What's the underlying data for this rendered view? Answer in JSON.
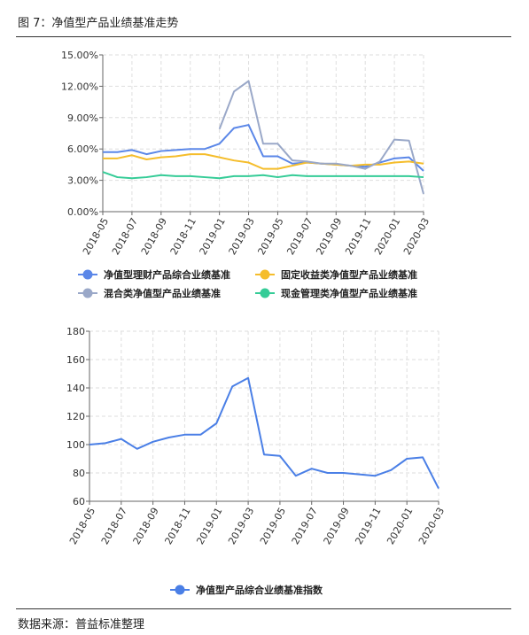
{
  "figure_title": "图 7：净值型产品业绩基准走势",
  "source": "数据来源：普益标准整理",
  "colors": {
    "blue": "#5b87e8",
    "gold": "#f5bd2b",
    "gray": "#9aa8c8",
    "green": "#35cc97",
    "index": "#4a7fe6"
  },
  "chart_data": [
    {
      "type": "line",
      "categories": [
        "2018-05",
        "2018-06",
        "2018-07",
        "2018-08",
        "2018-09",
        "2018-10",
        "2018-11",
        "2018-12",
        "2019-01",
        "2019-02",
        "2019-03",
        "2019-04",
        "2019-05",
        "2019-06",
        "2019-07",
        "2019-08",
        "2019-09",
        "2019-10",
        "2019-11",
        "2019-12",
        "2020-01",
        "2020-02",
        "2020-03"
      ],
      "xtick_labels": [
        "2018-05",
        "2018-07",
        "2018-09",
        "2018-11",
        "2019-01",
        "2019-03",
        "2019-05",
        "2019-07",
        "2019-09",
        "2019-11",
        "2020-01",
        "2020-03"
      ],
      "ytick_labels": [
        "0.00%",
        "3.00%",
        "6.00%",
        "9.00%",
        "12.00%",
        "15.00%"
      ],
      "ylim": [
        0,
        15
      ],
      "grid": true,
      "legend_position": "bottom",
      "series": [
        {
          "name": "净值型理财产品综合业绩基准",
          "color": "#5b87e8",
          "values": [
            5.7,
            5.7,
            5.9,
            5.5,
            5.8,
            5.9,
            6.0,
            6.0,
            6.5,
            8.0,
            8.3,
            5.3,
            5.3,
            4.6,
            4.7,
            4.6,
            4.5,
            4.4,
            4.3,
            4.7,
            5.1,
            5.2,
            3.9
          ]
        },
        {
          "name": "固定收益类净值型产品业绩基准",
          "color": "#f5bd2b",
          "values": [
            5.1,
            5.1,
            5.4,
            5.0,
            5.2,
            5.3,
            5.5,
            5.5,
            5.2,
            4.9,
            4.7,
            4.1,
            4.1,
            4.4,
            4.7,
            4.6,
            4.5,
            4.4,
            4.5,
            4.5,
            4.7,
            4.8,
            4.6
          ]
        },
        {
          "name": "混合类净值型产品业绩基准",
          "color": "#9aa8c8",
          "values": [
            null,
            null,
            null,
            null,
            null,
            null,
            null,
            null,
            7.9,
            11.5,
            12.5,
            6.5,
            6.5,
            4.9,
            4.8,
            4.6,
            4.6,
            4.4,
            4.1,
            4.8,
            6.9,
            6.8,
            1.7
          ]
        },
        {
          "name": "现金管理类净值型产品业绩基准",
          "color": "#35cc97",
          "values": [
            3.8,
            3.3,
            3.2,
            3.3,
            3.5,
            3.4,
            3.4,
            3.3,
            3.2,
            3.4,
            3.4,
            3.5,
            3.3,
            3.5,
            3.4,
            3.4,
            3.4,
            3.4,
            3.4,
            3.4,
            3.4,
            3.4,
            3.3
          ]
        }
      ]
    },
    {
      "type": "line",
      "categories": [
        "2018-05",
        "2018-06",
        "2018-07",
        "2018-08",
        "2018-09",
        "2018-10",
        "2018-11",
        "2018-12",
        "2019-01",
        "2019-02",
        "2019-03",
        "2019-04",
        "2019-05",
        "2019-06",
        "2019-07",
        "2019-08",
        "2019-09",
        "2019-10",
        "2019-11",
        "2019-12",
        "2020-01",
        "2020-02",
        "2020-03"
      ],
      "xtick_labels": [
        "2018-05",
        "2018-07",
        "2018-09",
        "2018-11",
        "2019-01",
        "2019-03",
        "2019-05",
        "2019-07",
        "2019-09",
        "2019-11",
        "2020-01",
        "2020-03"
      ],
      "ytick_labels": [
        "60",
        "80",
        "100",
        "120",
        "140",
        "160",
        "180"
      ],
      "ylim": [
        60,
        180
      ],
      "grid": true,
      "legend_position": "bottom",
      "series": [
        {
          "name": "净值型产品综合业绩基准指数",
          "color": "#4a7fe6",
          "values": [
            100,
            101,
            104,
            97,
            102,
            105,
            107,
            107,
            115,
            141,
            147,
            93,
            92,
            78,
            83,
            80,
            80,
            79,
            78,
            82,
            90,
            91,
            69
          ]
        }
      ]
    }
  ]
}
